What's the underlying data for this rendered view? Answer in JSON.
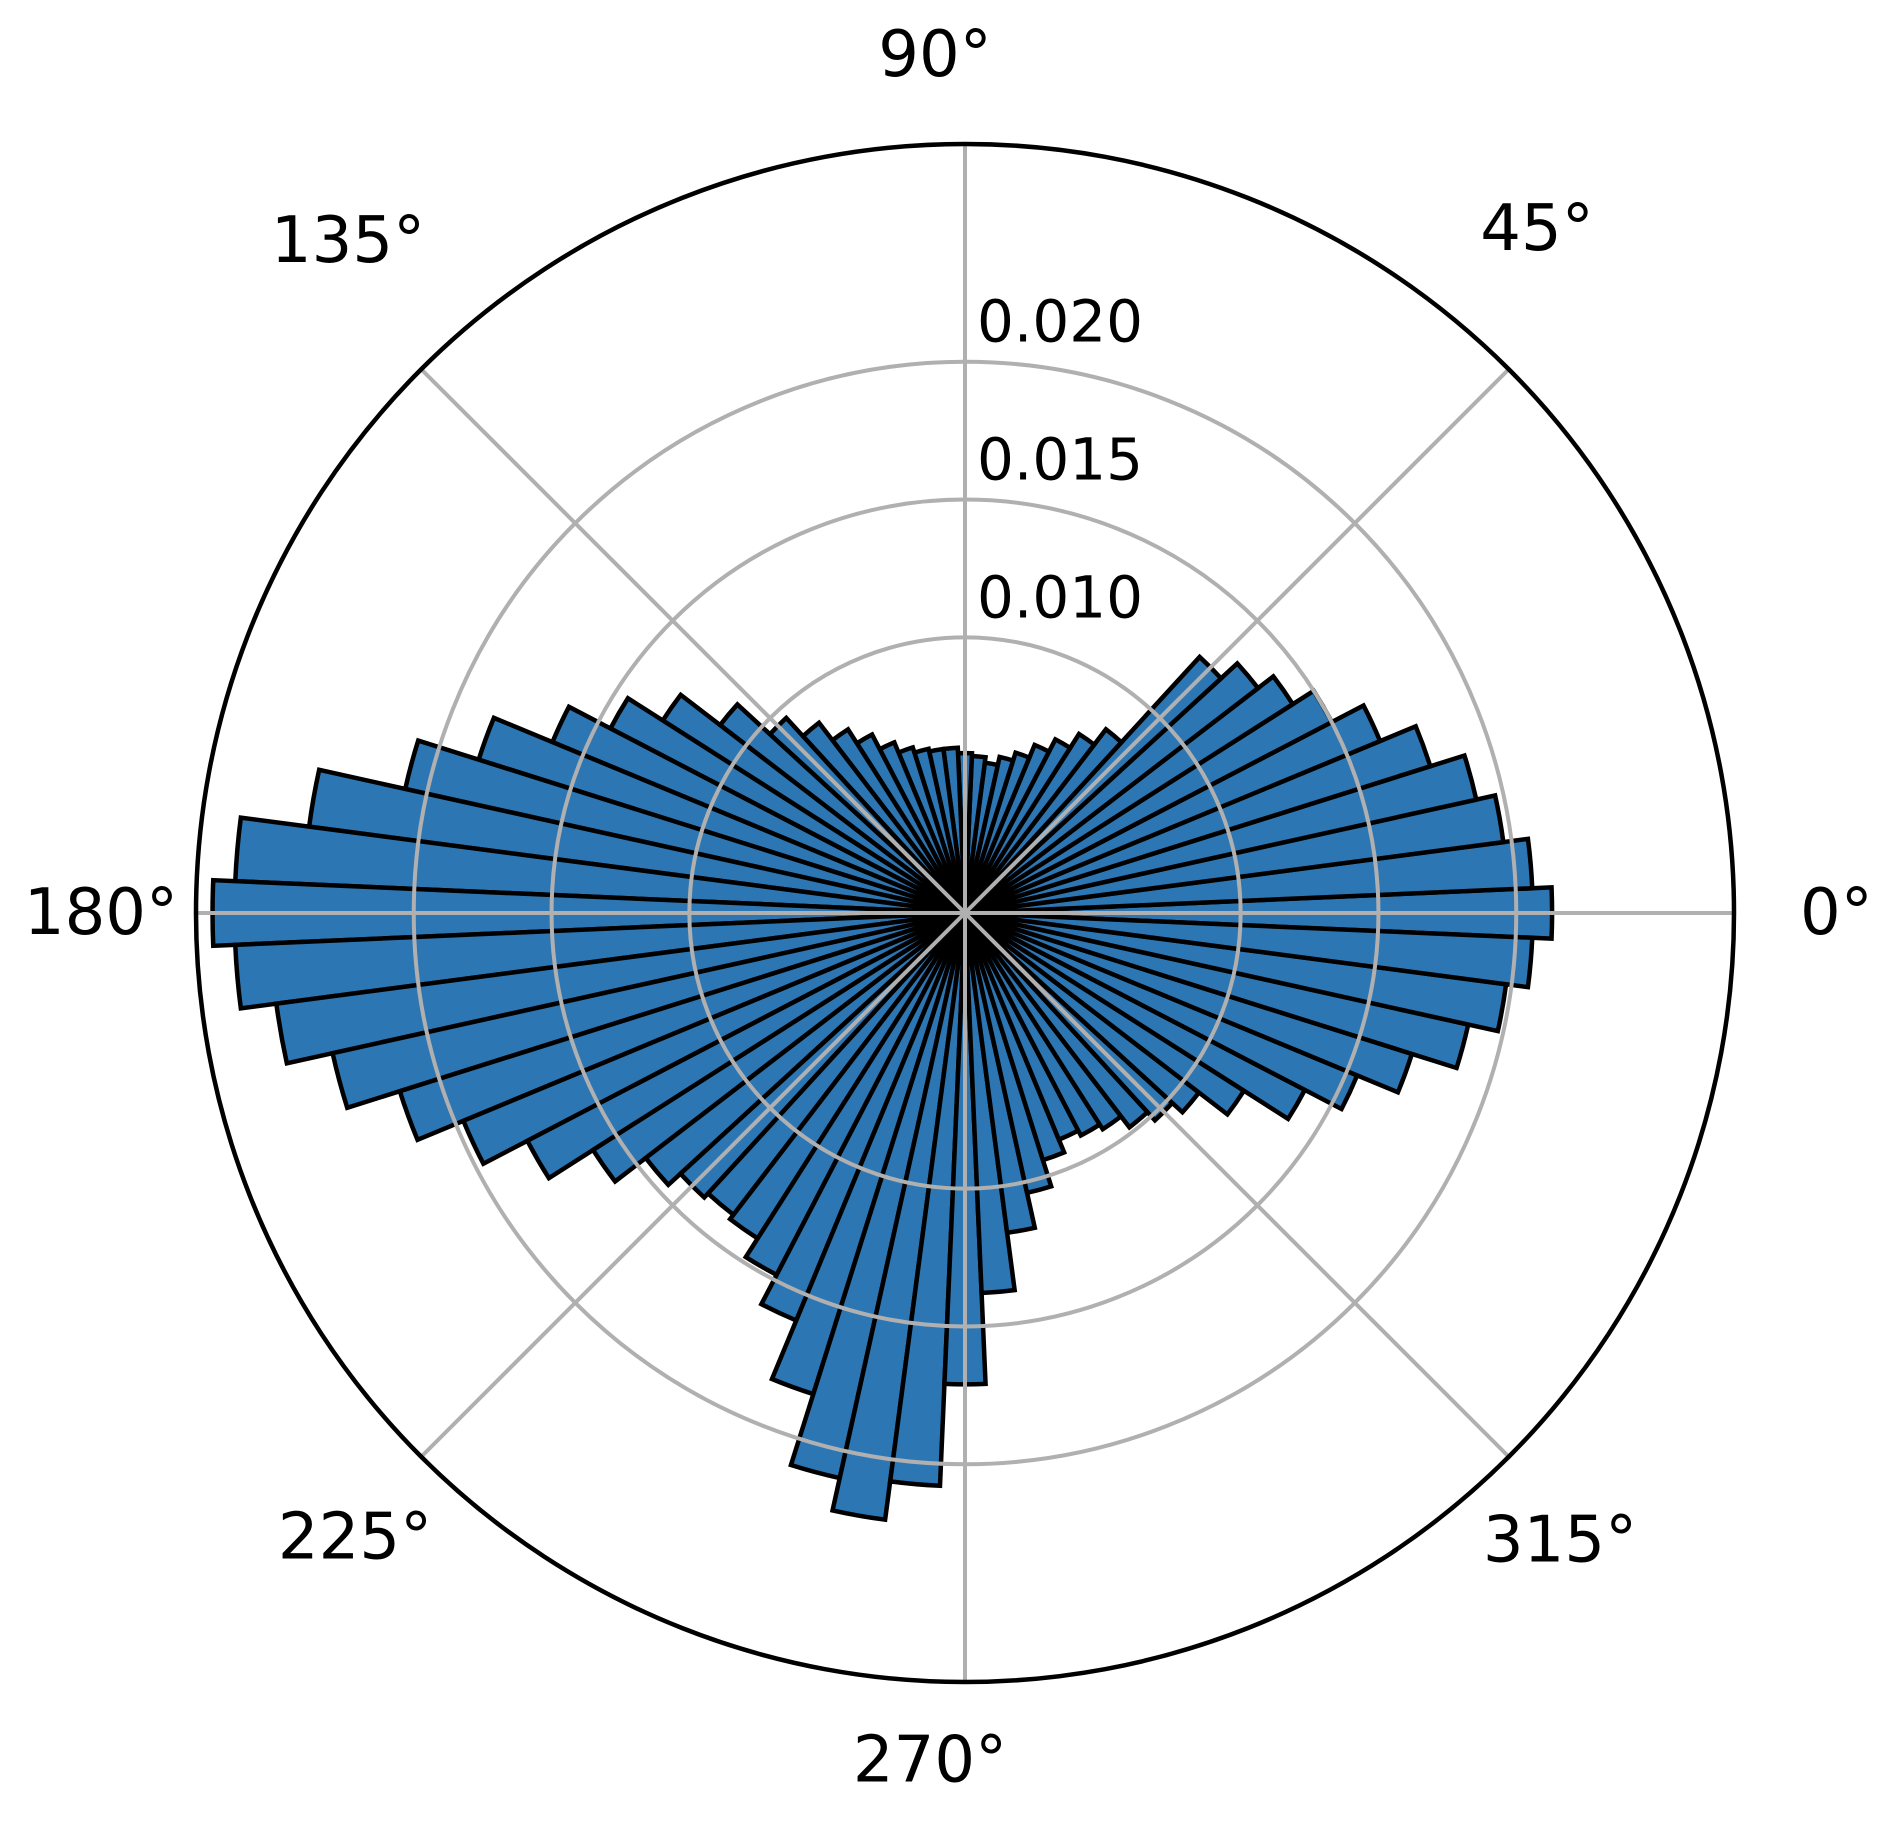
{
  "chart_data": {
    "type": "bar",
    "projection": "polar",
    "title": "",
    "bin_width_deg": 5,
    "start_angle_deg": 0,
    "values": [
      0.0213,
      0.0206,
      0.0197,
      0.019,
      0.0177,
      0.0163,
      0.015,
      0.0141,
      0.0134,
      0.0126,
      0.0084,
      0.0077,
      0.0071,
      0.0066,
      0.0061,
      0.0058,
      0.0055,
      0.0057,
      0.0058,
      0.006,
      0.006,
      0.0061,
      0.0063,
      0.0067,
      0.0073,
      0.0079,
      0.0087,
      0.0096,
      0.0112,
      0.013,
      0.0145,
      0.0162,
      0.0185,
      0.0208,
      0.024,
      0.0265,
      0.0273,
      0.0265,
      0.0252,
      0.0235,
      0.0215,
      0.0197,
      0.0179,
      0.016,
      0.0146,
      0.014,
      0.0138,
      0.014,
      0.0148,
      0.016,
      0.0183,
      0.021,
      0.0222,
      0.0208,
      0.0171,
      0.0138,
      0.0117,
      0.0104,
      0.0094,
      0.0089,
      0.0091,
      0.0093,
      0.0098,
      0.0102,
      0.0107,
      0.012,
      0.0139,
      0.0154,
      0.017,
      0.0187,
      0.0198,
      0.0206
    ],
    "theta_ticks": [
      {
        "angle_deg": 0,
        "label": "0°"
      },
      {
        "angle_deg": 45,
        "label": "45°"
      },
      {
        "angle_deg": 90,
        "label": "90°"
      },
      {
        "angle_deg": 135,
        "label": "135°"
      },
      {
        "angle_deg": 180,
        "label": "180°"
      },
      {
        "angle_deg": 225,
        "label": "225°"
      },
      {
        "angle_deg": 270,
        "label": "270°"
      },
      {
        "angle_deg": 315,
        "label": "315°"
      }
    ],
    "r_ticks": [
      {
        "value": 0.01,
        "label": "0.010"
      },
      {
        "value": 0.015,
        "label": "0.015"
      },
      {
        "value": 0.02,
        "label": "0.020"
      }
    ],
    "r_axis": {
      "min": 0,
      "max": 0.0279
    },
    "grid": true,
    "legend": false,
    "colors": {
      "bar_fill": "#2d76b4",
      "bar_edge": "#000000",
      "grid": "#b0b0b0",
      "spine": "#000000",
      "text": "#000000",
      "background": "#ffffff"
    }
  }
}
